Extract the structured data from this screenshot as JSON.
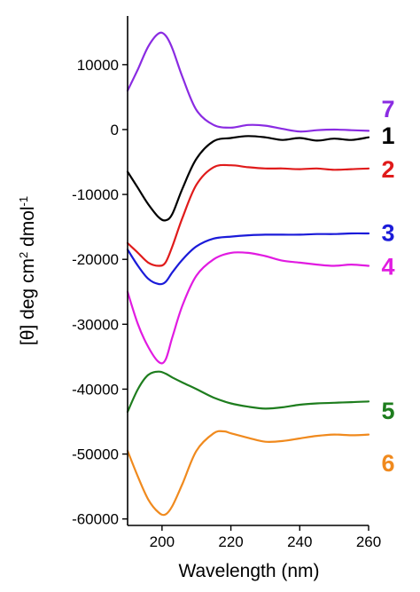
{
  "chart_data": {
    "type": "line",
    "xlabel": "Wavelength (nm)",
    "ylabel_parts": {
      "main": "[θ] deg cm",
      "sup1": "2",
      "mid": " dmol",
      "sup2": "-1"
    },
    "xlim": [
      190,
      260
    ],
    "ylim": [
      -61000,
      17500
    ],
    "x_ticks": [
      200,
      220,
      240,
      260
    ],
    "x_tick_labels": [
      "200",
      "220",
      "240",
      "260"
    ],
    "y_ticks": [
      10000,
      0,
      -10000,
      -20000,
      -30000,
      -40000,
      -50000,
      -60000
    ],
    "y_tick_labels": [
      "10000",
      "0",
      "-10000",
      "-20000",
      "-30000",
      "-40000",
      "-50000",
      "-60000"
    ],
    "grid": false,
    "series": [
      {
        "name": "7",
        "color": "#8a2be2",
        "label_y": 3300,
        "x": [
          190,
          193,
          196,
          199,
          201,
          203,
          206,
          210,
          215,
          220,
          225,
          230,
          235,
          240,
          245,
          250,
          255,
          260
        ],
        "y": [
          6000,
          9300,
          12800,
          14800,
          14500,
          12500,
          8000,
          3000,
          700,
          300,
          700,
          600,
          100,
          -300,
          -100,
          0,
          -100,
          -200
        ]
      },
      {
        "name": "1",
        "color": "#000000",
        "label_y": -800,
        "x": [
          190,
          193,
          196,
          199,
          201,
          203,
          206,
          210,
          215,
          220,
          225,
          230,
          235,
          240,
          245,
          250,
          255,
          260
        ],
        "y": [
          -6500,
          -9000,
          -11500,
          -13500,
          -14000,
          -13000,
          -9000,
          -4500,
          -1800,
          -1300,
          -1000,
          -1200,
          -1600,
          -1300,
          -1700,
          -1400,
          -1600,
          -1200
        ]
      },
      {
        "name": "2",
        "color": "#e01b1b",
        "label_y": -6000,
        "x": [
          190,
          193,
          196,
          199,
          201,
          203,
          206,
          210,
          215,
          220,
          225,
          230,
          235,
          240,
          245,
          250,
          255,
          260
        ],
        "y": [
          -17500,
          -19000,
          -20500,
          -21000,
          -20500,
          -18000,
          -13500,
          -8500,
          -5800,
          -5500,
          -5800,
          -6000,
          -6000,
          -6100,
          -6000,
          -6200,
          -6100,
          -6000
        ]
      },
      {
        "name": "3",
        "color": "#1b1bd9",
        "label_y": -15800,
        "x": [
          190,
          193,
          196,
          199,
          201,
          203,
          206,
          210,
          215,
          220,
          225,
          230,
          235,
          240,
          245,
          250,
          255,
          260
        ],
        "y": [
          -18500,
          -21000,
          -23000,
          -23800,
          -23500,
          -22000,
          -20000,
          -18000,
          -16800,
          -16500,
          -16300,
          -16200,
          -16200,
          -16200,
          -16100,
          -16100,
          -16000,
          -16000
        ]
      },
      {
        "name": "4",
        "color": "#e11be1",
        "label_y": -21000,
        "x": [
          190,
          193,
          196,
          199,
          201,
          203,
          206,
          210,
          215,
          220,
          225,
          230,
          235,
          240,
          245,
          250,
          255,
          260
        ],
        "y": [
          -25000,
          -30000,
          -33500,
          -35800,
          -35500,
          -32000,
          -27000,
          -22500,
          -20000,
          -19000,
          -19000,
          -19500,
          -20200,
          -20500,
          -20800,
          -21000,
          -20800,
          -21000
        ]
      },
      {
        "name": "5",
        "color": "#1e7d1e",
        "label_y": -43200,
        "x": [
          190,
          193,
          196,
          199,
          201,
          203,
          206,
          210,
          215,
          220,
          225,
          230,
          235,
          240,
          245,
          250,
          255,
          260
        ],
        "y": [
          -43500,
          -40000,
          -37800,
          -37300,
          -37600,
          -38200,
          -39000,
          -40000,
          -41300,
          -42200,
          -42700,
          -43000,
          -42800,
          -42400,
          -42200,
          -42100,
          -42000,
          -41900
        ]
      },
      {
        "name": "6",
        "color": "#f08a1e",
        "label_y": -51300,
        "x": [
          190,
          193,
          196,
          199,
          201,
          203,
          206,
          210,
          215,
          218,
          220,
          225,
          230,
          235,
          240,
          245,
          250,
          255,
          260
        ],
        "y": [
          -49500,
          -53500,
          -57000,
          -59000,
          -59300,
          -58000,
          -54500,
          -49500,
          -46800,
          -46500,
          -46800,
          -47500,
          -48100,
          -48000,
          -47600,
          -47200,
          -47000,
          -47100,
          -47000
        ]
      }
    ]
  }
}
